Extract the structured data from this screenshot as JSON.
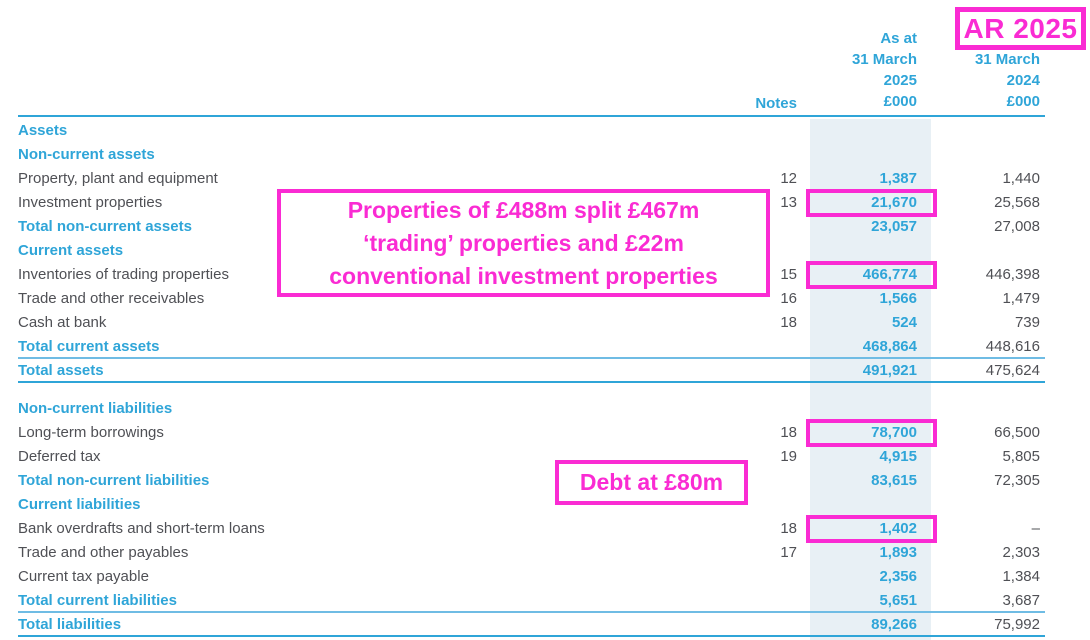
{
  "annotations": {
    "ar_badge": "AR 2025",
    "properties_note": {
      "line1": "Properties of £488m split £467m",
      "line2": "‘trading’ properties and £22m",
      "line3": "conventional investment properties"
    },
    "debt_note": "Debt at £80m"
  },
  "header": {
    "notes": "Notes",
    "col2025": [
      "As at",
      "31 March",
      "2025",
      "£000"
    ],
    "col2024": [
      "31 March",
      "2024",
      "£000"
    ]
  },
  "rows": [
    {
      "label": "Assets",
      "type": "section",
      "note": "",
      "v2025": "",
      "v2024": "",
      "boxed": false,
      "rule": "none",
      "spacer_after": false
    },
    {
      "label": "Non-current assets",
      "type": "section",
      "note": "",
      "v2025": "",
      "v2024": "",
      "boxed": false,
      "rule": "none",
      "spacer_after": false
    },
    {
      "label": "Property, plant and equipment",
      "type": "item",
      "note": "12",
      "v2025": "1,387",
      "v2024": "1,440",
      "boxed": false,
      "rule": "none",
      "spacer_after": false
    },
    {
      "label": "Investment properties",
      "type": "item",
      "note": "13",
      "v2025": "21,670",
      "v2024": "25,568",
      "boxed": true,
      "rule": "none",
      "spacer_after": false
    },
    {
      "label": "Total non-current assets",
      "type": "total",
      "note": "",
      "v2025": "23,057",
      "v2024": "27,008",
      "boxed": false,
      "rule": "none",
      "spacer_after": false
    },
    {
      "label": "Current assets",
      "type": "section",
      "note": "",
      "v2025": "",
      "v2024": "",
      "boxed": false,
      "rule": "none",
      "spacer_after": false
    },
    {
      "label": "Inventories of trading properties",
      "type": "item",
      "note": "15",
      "v2025": "466,774",
      "v2024": "446,398",
      "boxed": true,
      "rule": "none",
      "spacer_after": false
    },
    {
      "label": "Trade and other receivables",
      "type": "item",
      "note": "16",
      "v2025": "1,566",
      "v2024": "1,479",
      "boxed": false,
      "rule": "none",
      "spacer_after": false
    },
    {
      "label": "Cash at bank",
      "type": "item",
      "note": "18",
      "v2025": "524",
      "v2024": "739",
      "boxed": false,
      "rule": "none",
      "spacer_after": false
    },
    {
      "label": "Total current assets",
      "type": "total",
      "note": "",
      "v2025": "468,864",
      "v2024": "448,616",
      "boxed": false,
      "rule": "thin",
      "spacer_after": false
    },
    {
      "label": "Total assets",
      "type": "total",
      "note": "",
      "v2025": "491,921",
      "v2024": "475,624",
      "boxed": false,
      "rule": "thick",
      "spacer_after": true
    },
    {
      "label": "Non-current liabilities",
      "type": "section",
      "note": "",
      "v2025": "",
      "v2024": "",
      "boxed": false,
      "rule": "none",
      "spacer_after": false
    },
    {
      "label": "Long-term borrowings",
      "type": "item",
      "note": "18",
      "v2025": "78,700",
      "v2024": "66,500",
      "boxed": true,
      "rule": "none",
      "spacer_after": false
    },
    {
      "label": "Deferred tax",
      "type": "item",
      "note": "19",
      "v2025": "4,915",
      "v2024": "5,805",
      "boxed": false,
      "rule": "none",
      "spacer_after": false
    },
    {
      "label": "Total non-current liabilities",
      "type": "total",
      "note": "",
      "v2025": "83,615",
      "v2024": "72,305",
      "boxed": false,
      "rule": "none",
      "spacer_after": false
    },
    {
      "label": "Current liabilities",
      "type": "section",
      "note": "",
      "v2025": "",
      "v2024": "",
      "boxed": false,
      "rule": "none",
      "spacer_after": false
    },
    {
      "label": "Bank overdrafts and short-term loans",
      "type": "item",
      "note": "18",
      "v2025": "1,402",
      "v2024": "–",
      "boxed": true,
      "rule": "none",
      "spacer_after": false
    },
    {
      "label": "Trade and other payables",
      "type": "item",
      "note": "17",
      "v2025": "1,893",
      "v2024": "2,303",
      "boxed": false,
      "rule": "none",
      "spacer_after": false
    },
    {
      "label": "Current tax payable",
      "type": "item",
      "note": "",
      "v2025": "2,356",
      "v2024": "1,384",
      "boxed": false,
      "rule": "none",
      "spacer_after": false
    },
    {
      "label": "Total current liabilities",
      "type": "total",
      "note": "",
      "v2025": "5,651",
      "v2024": "3,687",
      "boxed": false,
      "rule": "thin",
      "spacer_after": false
    },
    {
      "label": "Total liabilities",
      "type": "total",
      "note": "",
      "v2025": "89,266",
      "v2024": "75,992",
      "boxed": false,
      "rule": "thick",
      "spacer_after": false
    }
  ],
  "colors": {
    "accent_magenta": "#fa2bd3",
    "brand_blue": "#2fa5d8",
    "band_fill": "#e8f0f5",
    "body_text": "#4f5055"
  }
}
